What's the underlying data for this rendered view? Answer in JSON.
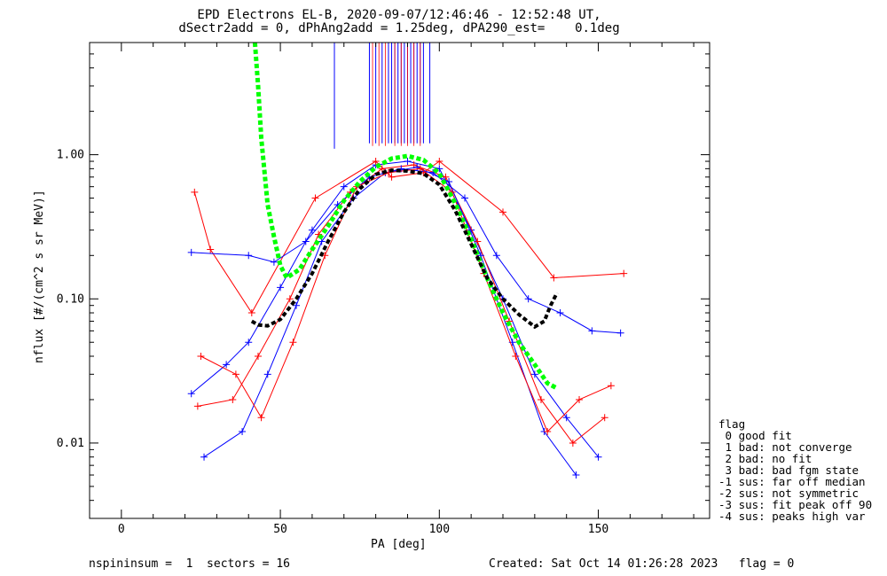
{
  "title_line1": "EPD Electrons EL-B, 2020-09-07/12:46:46 - 12:52:48 UT,",
  "title_line2": "dSectr2add = 0, dPhAng2add = 1.25deg, dPA290_est=    0.1deg",
  "footer": {
    "left": "nspininsum =  1  sectors = 16",
    "right": "Created: Sat Oct 14 01:26:28 2023   flag = 0"
  },
  "legend": {
    "title": "flag",
    "items": [
      " 0 good fit",
      " 1 bad: not converge",
      " 2 bad: no fit",
      " 3 bad: bad fgm state",
      "-1 sus: far off median",
      "-2 sus: not symmetric",
      "-3 sus: fit peak off 90",
      "-4 sus: peaks high var"
    ]
  },
  "colors": {
    "series_a": "#ff0000",
    "series_b": "#0000ff",
    "fit": "#00ff00",
    "median": "#000000"
  },
  "chart_data": {
    "type": "line",
    "title": "EPD Electrons EL-B, 2020-09-07/12:46:46 - 12:52:48 UT,",
    "subtitle": "dSectr2add = 0, dPhAng2add = 1.25deg, dPA290_est=    0.1deg",
    "xlabel": "PA [deg]",
    "ylabel": "nflux [#/(cm^2 s sr MeV)]",
    "xlim": [
      -10,
      185
    ],
    "ylim": [
      0.003,
      6.0
    ],
    "yscale": "log",
    "xticks": [
      0,
      50,
      100,
      150
    ],
    "xtick_labels": [
      "0",
      "50",
      "100",
      "150"
    ],
    "yticks": [
      0.01,
      0.1,
      1.0
    ],
    "ytick_labels": [
      "0.01",
      "0.10",
      "1.00"
    ],
    "grid": false,
    "legend_position": "right",
    "series": [
      {
        "color": "#00ff00",
        "style": "dashed",
        "x": [
          42,
          43,
          44,
          46,
          48,
          50,
          52,
          56,
          60,
          65,
          70,
          75,
          80,
          85,
          90,
          95,
          100,
          105,
          110,
          115,
          120,
          125,
          130,
          134,
          137
        ],
        "y": [
          6.0,
          3.0,
          1.3,
          0.45,
          0.27,
          0.17,
          0.14,
          0.16,
          0.22,
          0.32,
          0.48,
          0.65,
          0.82,
          0.94,
          0.98,
          0.92,
          0.74,
          0.46,
          0.26,
          0.14,
          0.08,
          0.05,
          0.035,
          0.026,
          0.024
        ]
      },
      {
        "color": "#000000",
        "style": "dashed",
        "x": [
          41,
          43,
          46,
          50,
          55,
          60,
          65,
          70,
          75,
          80,
          85,
          90,
          95,
          100,
          105,
          110,
          115,
          120,
          125,
          130,
          133,
          135,
          137
        ],
        "y": [
          0.07,
          0.066,
          0.065,
          0.072,
          0.1,
          0.15,
          0.25,
          0.4,
          0.58,
          0.73,
          0.78,
          0.77,
          0.74,
          0.62,
          0.41,
          0.24,
          0.14,
          0.1,
          0.078,
          0.064,
          0.07,
          0.09,
          0.11
        ]
      }
    ],
    "sample_profiles": [
      {
        "color": "#0000ff",
        "x": [
          22,
          33,
          40,
          50,
          60,
          70,
          80,
          90,
          100,
          110,
          120,
          130,
          140,
          150
        ],
        "y": [
          0.022,
          0.035,
          0.05,
          0.12,
          0.3,
          0.6,
          0.85,
          0.9,
          0.8,
          0.3,
          0.1,
          0.03,
          0.015,
          0.008
        ]
      },
      {
        "color": "#ff0000",
        "x": [
          24,
          35,
          43,
          53,
          62,
          72,
          82,
          92,
          102,
          112,
          122,
          132,
          142,
          152
        ],
        "y": [
          0.018,
          0.02,
          0.04,
          0.1,
          0.28,
          0.55,
          0.8,
          0.85,
          0.7,
          0.25,
          0.07,
          0.02,
          0.01,
          0.015
        ]
      },
      {
        "color": "#0000ff",
        "x": [
          26,
          38,
          46,
          55,
          63,
          73,
          83,
          93,
          103,
          113,
          123,
          133,
          143
        ],
        "y": [
          0.008,
          0.012,
          0.03,
          0.09,
          0.25,
          0.5,
          0.75,
          0.82,
          0.65,
          0.2,
          0.05,
          0.012,
          0.006
        ]
      },
      {
        "color": "#ff0000",
        "x": [
          23,
          28,
          41,
          61,
          80,
          85,
          95,
          100,
          120,
          136,
          158
        ],
        "y": [
          0.55,
          0.22,
          0.08,
          0.5,
          0.9,
          0.7,
          0.75,
          0.9,
          0.4,
          0.14,
          0.15
        ]
      },
      {
        "color": "#0000ff",
        "x": [
          22,
          40,
          48,
          58,
          68,
          78,
          88,
          98,
          108,
          118,
          128,
          138,
          148,
          157
        ],
        "y": [
          0.21,
          0.2,
          0.18,
          0.25,
          0.45,
          0.7,
          0.8,
          0.75,
          0.5,
          0.2,
          0.1,
          0.08,
          0.06,
          0.058
        ]
      },
      {
        "color": "#ff0000",
        "x": [
          25,
          36,
          44,
          54,
          64,
          74,
          84,
          94,
          104,
          114,
          124,
          134,
          144,
          154
        ],
        "y": [
          0.04,
          0.03,
          0.015,
          0.05,
          0.2,
          0.6,
          0.75,
          0.8,
          0.55,
          0.15,
          0.04,
          0.012,
          0.02,
          0.025
        ]
      }
    ],
    "tick_spikes": {
      "color": "#0000ff",
      "x": [
        67,
        78,
        80,
        82,
        84,
        85,
        86,
        87,
        88,
        89,
        90,
        91,
        92,
        93,
        94,
        95,
        97
      ],
      "y_from": [
        1.1,
        1.2,
        1.2,
        1.2,
        1.2,
        1.2,
        1.2,
        1.2,
        1.2,
        1.2,
        1.2,
        1.2,
        1.2,
        1.2,
        1.2,
        1.2,
        1.2
      ]
    }
  }
}
